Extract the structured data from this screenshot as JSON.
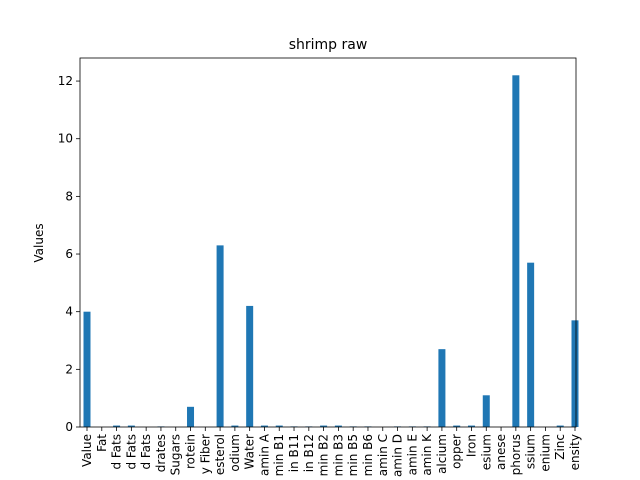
{
  "chart_data": {
    "type": "bar",
    "title": "shrimp raw",
    "xlabel": "",
    "ylabel": "Values",
    "ylim": [
      0,
      12.8
    ],
    "yticks": [
      0,
      2,
      4,
      6,
      8,
      10,
      12
    ],
    "bar_color": "#1f77b4",
    "grid": false,
    "categories": [
      "Value",
      "Fat",
      "d Fats",
      "d Fats",
      "d Fats",
      "drates",
      "Sugars",
      "rotein",
      "y Fiber",
      "esterol",
      "odium",
      "Water",
      "amin A",
      "min B1",
      "in B11",
      "in B12",
      "min B2",
      "min B3",
      "min B5",
      "min B6",
      "amin C",
      "amin D",
      "amin E",
      "amin K",
      "alcium",
      "opper",
      "Iron",
      "esium",
      "anese",
      "phorus",
      "ssium",
      "enium",
      "Zinc",
      "ensity"
    ],
    "values": [
      4.0,
      0.0,
      0.05,
      0.05,
      0.0,
      0.02,
      0.0,
      0.7,
      0.0,
      6.3,
      0.05,
      4.2,
      0.05,
      0.05,
      0.02,
      0.02,
      0.05,
      0.05,
      0.02,
      0.02,
      0.0,
      0.02,
      0.02,
      0.02,
      2.7,
      0.05,
      0.05,
      1.1,
      0.0,
      12.2,
      5.7,
      0.0,
      0.05,
      3.7
    ]
  }
}
